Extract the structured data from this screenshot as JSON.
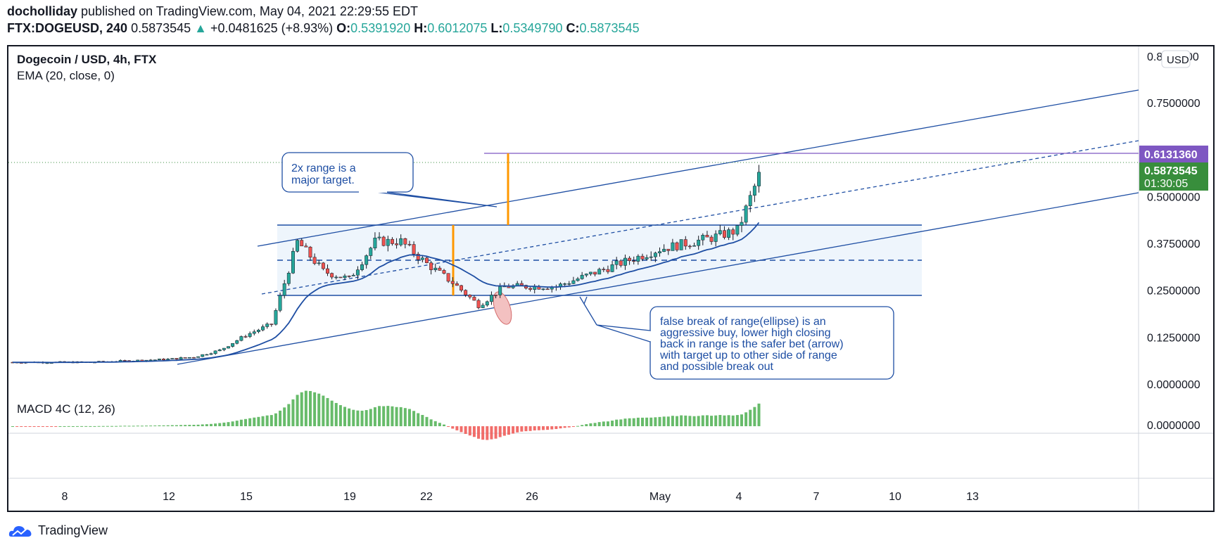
{
  "header": {
    "user": "docholliday",
    "published_text": "published on TradingView.com, May 04, 2021 22:29:55 EDT",
    "symbol": "FTX:DOGEUSD, 240",
    "last": "0.5873545",
    "change_arrow": "▲",
    "change": "+0.0481625 (+8.93%)",
    "o_label": "O:",
    "o": "0.5391920",
    "h_label": "H:",
    "h": "0.6012075",
    "l_label": "L:",
    "l": "0.5349790",
    "c_label": "C:",
    "c": "0.5873545"
  },
  "legend": {
    "title": "Dogecoin / USD, 4h, FTX",
    "ema": "EMA (20, close, 0)",
    "macd": "MACD 4C (12, 26)"
  },
  "price_axis": {
    "currency_badge": "USD",
    "top_partial": "0.8",
    "top_partial_tail": "00",
    "ticks": [
      "0.7500000",
      "0.5000000",
      "0.3750000",
      "0.2500000",
      "0.1250000",
      "0.0000000"
    ],
    "tick_values": [
      0.75,
      0.5,
      0.375,
      0.25,
      0.125,
      0.0
    ],
    "macd_tick": "0.0000000",
    "label_target": "0.6131360",
    "label_last": "0.5873545",
    "label_countdown": "01:30:05"
  },
  "time_axis": {
    "labels": [
      "8",
      "12",
      "15",
      "19",
      "22",
      "26",
      "May",
      "4",
      "7",
      "10",
      "13"
    ]
  },
  "annotations": {
    "callout1": [
      "2x range is a",
      "major target."
    ],
    "callout2": [
      "false break of range(ellipse) is an",
      "aggressive buy, lower high closing",
      "back in range is the safer bet (arrow)",
      "with target up to other side of range",
      "and possible break out"
    ]
  },
  "colors": {
    "up": "#26a69a",
    "down": "#ef5350",
    "ema": "#1e4ea3",
    "annotation": "#1e4ea3",
    "target_line": "#7e57c2",
    "last_price_bg": "#388e3c",
    "orange": "#ff9800",
    "range_fill": "#eef5fc"
  },
  "footer": {
    "brand": "TradingView"
  },
  "chart_data": {
    "type": "candlestick",
    "title": "Dogecoin / USD, 4h, FTX",
    "interval": "4h",
    "price_range": [
      0,
      0.82
    ],
    "x_range": [
      "2021-04-05",
      "2021-05-16"
    ],
    "series_price": [
      {
        "date": "2021-04-05",
        "close": 0.058
      },
      {
        "date": "2021-04-08",
        "close": 0.058
      },
      {
        "date": "2021-04-11",
        "close": 0.066
      },
      {
        "date": "2021-04-12",
        "close": 0.072
      },
      {
        "date": "2021-04-13",
        "close": 0.09
      },
      {
        "date": "2021-04-14",
        "close": 0.13
      },
      {
        "date": "2021-04-15",
        "close": 0.16
      },
      {
        "date": "2021-04-16",
        "close": 0.38
      },
      {
        "date": "2021-04-17",
        "close": 0.3
      },
      {
        "date": "2021-04-18",
        "close": 0.28
      },
      {
        "date": "2021-04-19",
        "close": 0.38
      },
      {
        "date": "2021-04-20",
        "close": 0.38
      },
      {
        "date": "2021-04-21",
        "close": 0.32
      },
      {
        "date": "2021-04-22",
        "close": 0.27
      },
      {
        "date": "2021-04-23",
        "close": 0.21
      },
      {
        "date": "2021-04-24",
        "close": 0.26
      },
      {
        "date": "2021-04-26",
        "close": 0.26
      },
      {
        "date": "2021-04-28",
        "close": 0.31
      },
      {
        "date": "2021-04-30",
        "close": 0.36
      },
      {
        "date": "2021-05-02",
        "close": 0.39
      },
      {
        "date": "2021-05-03",
        "close": 0.41
      },
      {
        "date": "2021-05-04",
        "close": 0.5873545
      }
    ],
    "range_box": {
      "top": 0.425,
      "mid": 0.33,
      "bottom": 0.235
    },
    "target_level": 0.613136,
    "indicator": "EMA (20, close, 0)",
    "macd_series": "MACD 4C (12, 26)",
    "grid": false
  }
}
